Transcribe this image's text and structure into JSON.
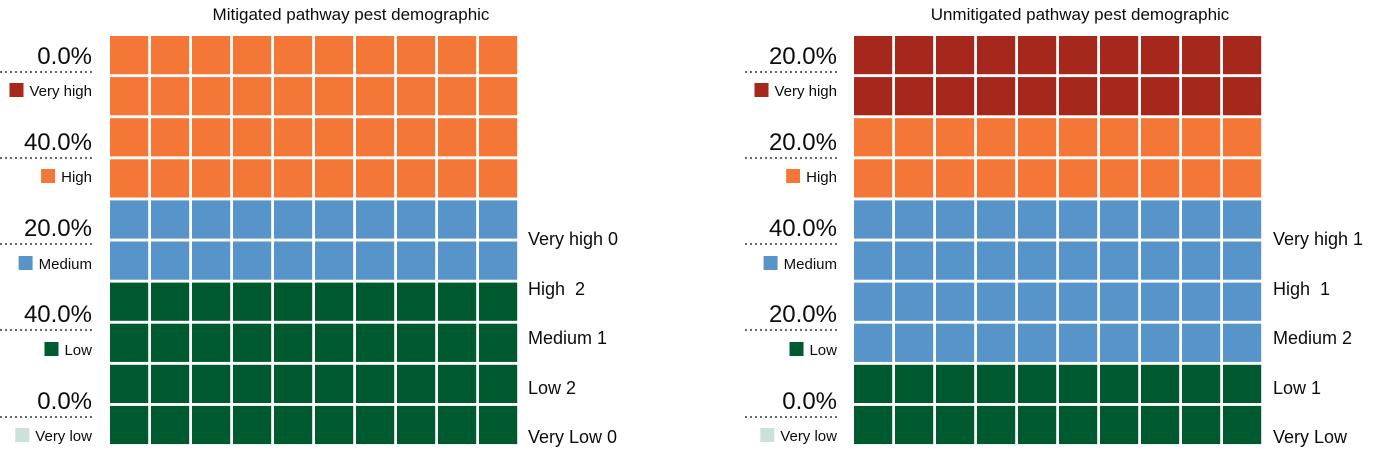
{
  "colors": {
    "very_high": "#a6271c",
    "high": "#f47738",
    "medium": "#5694ca",
    "low": "#005a30",
    "very_low": "#cce2d8"
  },
  "chart_data": [
    {
      "type": "waffle",
      "title": "Mitigated pathway pest demographic",
      "grid": {
        "columns": 10,
        "rows": 10
      },
      "categories": [
        "Very high",
        "High",
        "Medium",
        "Low",
        "Very low"
      ],
      "percentages": [
        "0.0%",
        "40.0%",
        "20.0%",
        "40.0%",
        "0.0%"
      ],
      "values": [
        0,
        40,
        20,
        40,
        0
      ],
      "counts": [
        {
          "label": "Very high",
          "value": "0",
          "text": "Very high 0"
        },
        {
          "label": "High",
          "value": "2",
          "text": "High  2"
        },
        {
          "label": "Medium",
          "value": "1",
          "text": "Medium 1"
        },
        {
          "label": "Low",
          "value": "2",
          "text": "Low 2"
        },
        {
          "label": "Very Low",
          "value": "0",
          "text": "Very Low 0"
        }
      ]
    },
    {
      "type": "waffle",
      "title": "Unmitigated pathway pest demographic",
      "grid": {
        "columns": 10,
        "rows": 10
      },
      "categories": [
        "Very high",
        "High",
        "Medium",
        "Low",
        "Very low"
      ],
      "percentages": [
        "20.0%",
        "20.0%",
        "40.0%",
        "20.0%",
        "0.0%"
      ],
      "values": [
        20,
        20,
        40,
        20,
        0
      ],
      "counts": [
        {
          "label": "Very high",
          "value": "1",
          "text": "Very high 1"
        },
        {
          "label": "High",
          "value": "1",
          "text": "High  1"
        },
        {
          "label": "Medium",
          "value": "2",
          "text": "Medium 2"
        },
        {
          "label": "Low",
          "value": "1",
          "text": "Low 1"
        },
        {
          "label": "Very Low",
          "value": "",
          "text": "Very Low"
        }
      ]
    }
  ]
}
